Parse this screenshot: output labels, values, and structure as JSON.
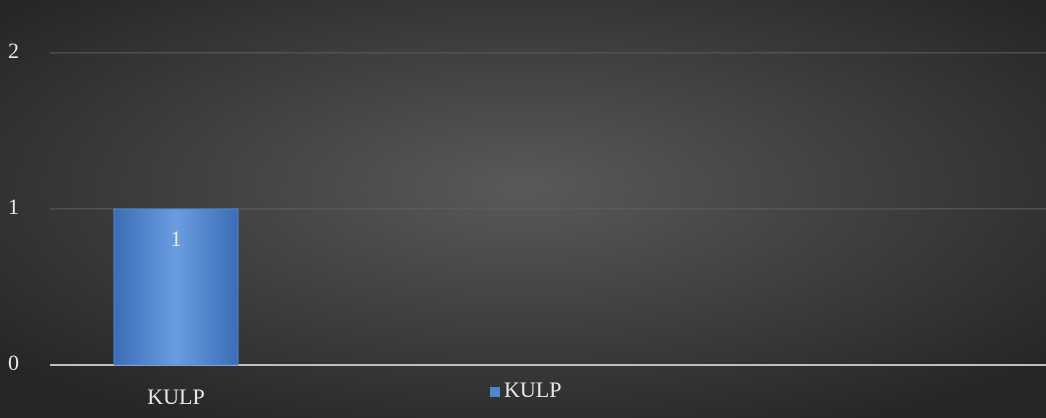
{
  "chart_data": {
    "type": "bar",
    "categories": [
      "KULP"
    ],
    "series": [
      {
        "name": "KULP",
        "color": "#4f86d0",
        "values": [
          1
        ]
      }
    ],
    "ylim": [
      0,
      2.3
    ],
    "yticks": [
      0,
      1,
      2
    ],
    "grid": true,
    "data_labels": true,
    "legend": "bottom"
  }
}
